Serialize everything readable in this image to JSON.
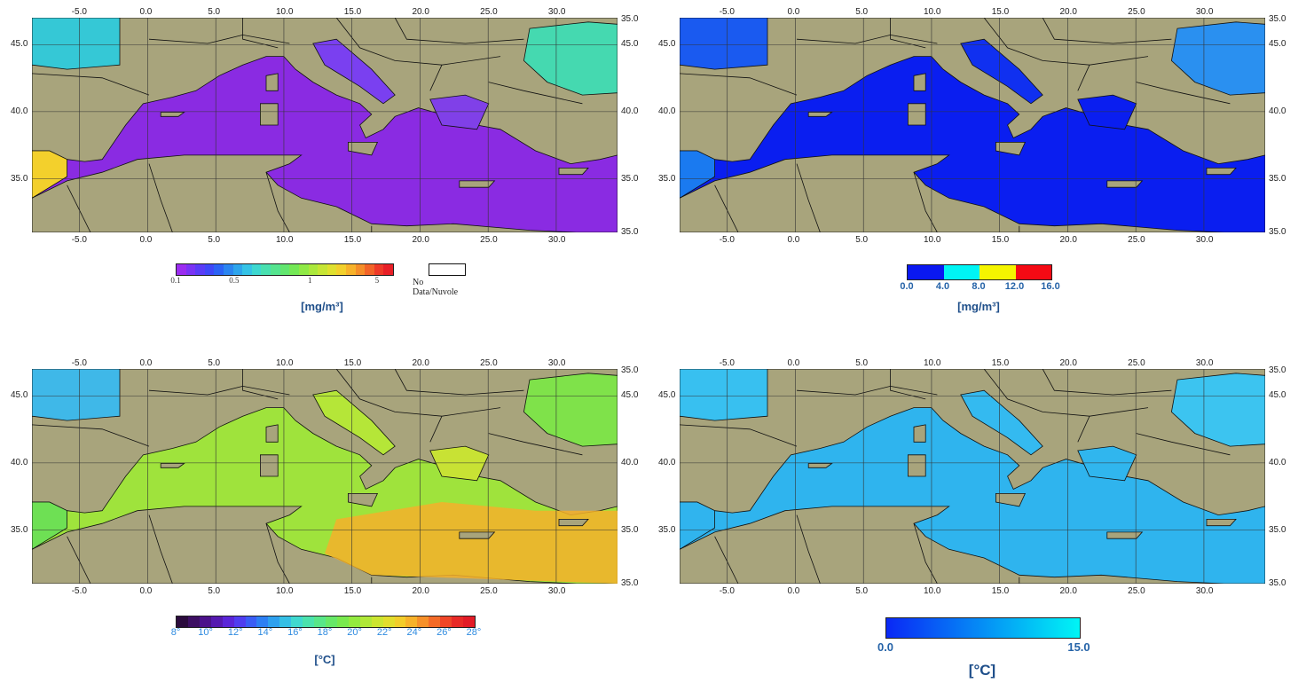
{
  "colors": {
    "land": "#a8a47c",
    "border": "#111111",
    "grid": "#333333"
  },
  "axes": {
    "lon_ticks": [
      "-5.0",
      "0.0",
      "5.0",
      "10.0",
      "15.0",
      "20.0",
      "25.0",
      "30.0"
    ],
    "lon_top_extra": "35.0",
    "lat_ticks": [
      "45.0",
      "40.0",
      "35.0"
    ],
    "lat_right_extra": "35.0",
    "lon_values": [
      -5,
      0,
      5,
      10,
      15,
      20,
      25,
      30
    ],
    "lat_values": [
      45,
      40,
      35
    ],
    "lon_range": [
      -8.5,
      34.5
    ],
    "lat_range": [
      31,
      47
    ]
  },
  "panels": {
    "chl_map": {
      "sea_color": "#8a2be2",
      "colorbar_colors": [
        "#9b2cf0",
        "#7a33f5",
        "#5a3cf7",
        "#3f48f8",
        "#2c63f5",
        "#2b85f0",
        "#2ea5ec",
        "#35c3e6",
        "#3ed8d0",
        "#49e0b0",
        "#55e48f",
        "#62e66f",
        "#74e856",
        "#8fe946",
        "#abe83c",
        "#c6e535",
        "#dfe02f",
        "#f2d02c",
        "#f7b22a",
        "#f58e29",
        "#f26428",
        "#ee3a28",
        "#e81f27"
      ],
      "colorbar_labels": [
        {
          "text": "0.1",
          "pos": 0.0
        },
        {
          "text": "0.5",
          "pos": 0.27
        },
        {
          "text": "1",
          "pos": 0.62
        },
        {
          "text": "5",
          "pos": 0.93
        }
      ],
      "nodata_label": "No Data/Nuvole",
      "unit": "[mg/m³]"
    },
    "chl_err": {
      "sea_color": "#0a1ef0",
      "colorbar_colors": [
        "#0a18f0",
        "#00f5f5",
        "#f5f500",
        "#f50a14"
      ],
      "colorbar_labels": [
        {
          "text": "0.0",
          "pos": 0.0
        },
        {
          "text": "4.0",
          "pos": 0.25
        },
        {
          "text": "8.0",
          "pos": 0.5
        },
        {
          "text": "12.0",
          "pos": 0.75
        },
        {
          "text": "16.0",
          "pos": 1.0
        }
      ],
      "unit": "[mg/m³]"
    },
    "sst_map": {
      "sea_color": "#9fe33c",
      "colorbar_colors": [
        "#2b0b3d",
        "#3d0f63",
        "#4b128a",
        "#5519b0",
        "#5a25d8",
        "#4f3df0",
        "#3a5df5",
        "#2d7ff3",
        "#2ea0ee",
        "#35bfe5",
        "#3fd8cf",
        "#4be2ad",
        "#58e689",
        "#67e868",
        "#79e94e",
        "#93ea40",
        "#b0e838",
        "#cbe531",
        "#e2dd2d",
        "#f2cd2b",
        "#f7b22a",
        "#f69029",
        "#f36b28",
        "#ef4628",
        "#e82a27",
        "#e21b27"
      ],
      "colorbar_labels": [
        {
          "text": "8°",
          "pos": 0.0
        },
        {
          "text": "10°",
          "pos": 0.1
        },
        {
          "text": "12°",
          "pos": 0.2
        },
        {
          "text": "14°",
          "pos": 0.3
        },
        {
          "text": "16°",
          "pos": 0.4
        },
        {
          "text": "18°",
          "pos": 0.5
        },
        {
          "text": "20°",
          "pos": 0.6
        },
        {
          "text": "22°",
          "pos": 0.7
        },
        {
          "text": "24°",
          "pos": 0.8
        },
        {
          "text": "26°",
          "pos": 0.9
        },
        {
          "text": "28°",
          "pos": 1.0
        }
      ],
      "unit": "[°C]"
    },
    "sst_err": {
      "sea_color": "#2fb4ee",
      "colorbar_gradient": [
        "#0a28f5",
        "#00f5f5"
      ],
      "colorbar_labels": [
        {
          "text": "0.0",
          "pos": 0.0
        },
        {
          "text": "15.0",
          "pos": 1.0
        }
      ],
      "unit": "[°C]"
    }
  }
}
